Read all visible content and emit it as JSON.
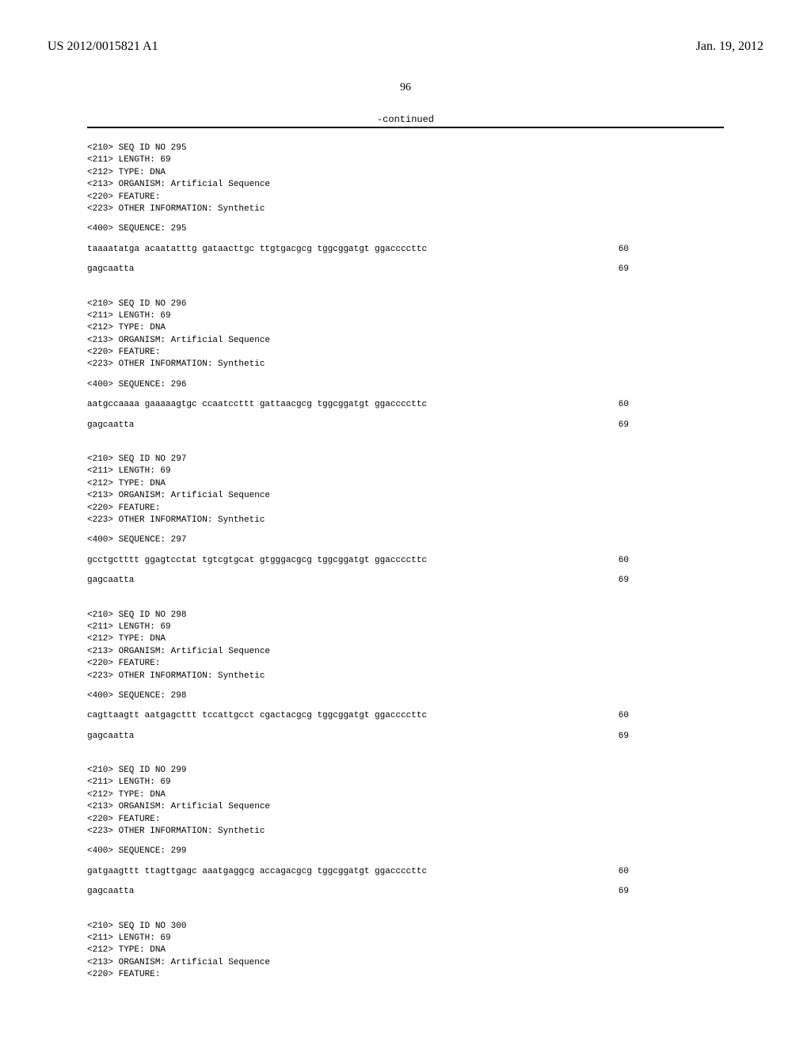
{
  "header": {
    "left": "US 2012/0015821 A1",
    "right": "Jan. 19, 2012"
  },
  "pageNumber": "96",
  "continued": "-continued",
  "sequences": [
    {
      "fields": [
        "<210> SEQ ID NO 295",
        "<211> LENGTH: 69",
        "<212> TYPE: DNA",
        "<213> ORGANISM: Artificial Sequence",
        "<220> FEATURE:",
        "<223> OTHER INFORMATION: Synthetic"
      ],
      "seq400": "<400> SEQUENCE: 295",
      "rows": [
        {
          "text": "taaaatatga acaatatttg gataacttgc ttgtgacgcg tggcggatgt ggaccccttc",
          "num": "60"
        },
        {
          "text": "gagcaatta",
          "num": "69"
        }
      ]
    },
    {
      "fields": [
        "<210> SEQ ID NO 296",
        "<211> LENGTH: 69",
        "<212> TYPE: DNA",
        "<213> ORGANISM: Artificial Sequence",
        "<220> FEATURE:",
        "<223> OTHER INFORMATION: Synthetic"
      ],
      "seq400": "<400> SEQUENCE: 296",
      "rows": [
        {
          "text": "aatgccaaaa gaaaaagtgc ccaatccttt gattaacgcg tggcggatgt ggaccccttc",
          "num": "60"
        },
        {
          "text": "gagcaatta",
          "num": "69"
        }
      ]
    },
    {
      "fields": [
        "<210> SEQ ID NO 297",
        "<211> LENGTH: 69",
        "<212> TYPE: DNA",
        "<213> ORGANISM: Artificial Sequence",
        "<220> FEATURE:",
        "<223> OTHER INFORMATION: Synthetic"
      ],
      "seq400": "<400> SEQUENCE: 297",
      "rows": [
        {
          "text": "gcctgctttt ggagtcctat tgtcgtgcat gtgggacgcg tggcggatgt ggaccccttc",
          "num": "60"
        },
        {
          "text": "gagcaatta",
          "num": "69"
        }
      ]
    },
    {
      "fields": [
        "<210> SEQ ID NO 298",
        "<211> LENGTH: 69",
        "<212> TYPE: DNA",
        "<213> ORGANISM: Artificial Sequence",
        "<220> FEATURE:",
        "<223> OTHER INFORMATION: Synthetic"
      ],
      "seq400": "<400> SEQUENCE: 298",
      "rows": [
        {
          "text": "cagttaagtt aatgagcttt tccattgcct cgactacgcg tggcggatgt ggaccccttc",
          "num": "60"
        },
        {
          "text": "gagcaatta",
          "num": "69"
        }
      ]
    },
    {
      "fields": [
        "<210> SEQ ID NO 299",
        "<211> LENGTH: 69",
        "<212> TYPE: DNA",
        "<213> ORGANISM: Artificial Sequence",
        "<220> FEATURE:",
        "<223> OTHER INFORMATION: Synthetic"
      ],
      "seq400": "<400> SEQUENCE: 299",
      "rows": [
        {
          "text": "gatgaagttt ttagttgagc aaatgaggcg accagacgcg tggcggatgt ggaccccttc",
          "num": "60"
        },
        {
          "text": "gagcaatta",
          "num": "69"
        }
      ]
    },
    {
      "fields": [
        "<210> SEQ ID NO 300",
        "<211> LENGTH: 69",
        "<212> TYPE: DNA",
        "<213> ORGANISM: Artificial Sequence",
        "<220> FEATURE:"
      ],
      "seq400": "",
      "rows": []
    }
  ]
}
